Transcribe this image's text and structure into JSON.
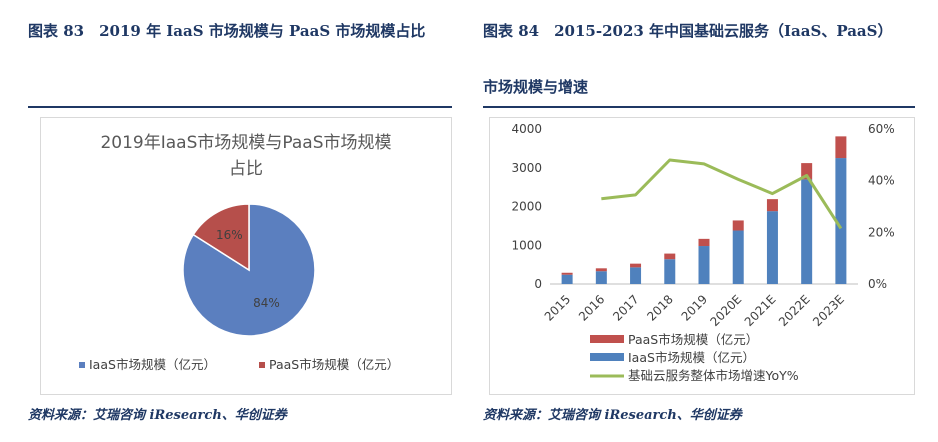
{
  "left": {
    "figure_title": "图表 83　2019 年 IaaS 市场规模与 PaaS 市场规模占比",
    "source": "资料来源：艾瑞咨询 iResearch、华创证券"
  },
  "right": {
    "figure_title_line1": "图表 84　2015-2023 年中国基础云服务（IaaS、PaaS）",
    "figure_title_line2": "市场规模与增速",
    "source": "资料来源：艾瑞咨询 iResearch、华创证券"
  },
  "chart_data": [
    {
      "type": "pie",
      "title_line1": "2019年IaaS市场规模与PaaS市场规模",
      "title_line2": "占比",
      "slices": [
        {
          "name": "IaaS市场规模（亿元）",
          "value": 84,
          "label": "84%",
          "color": "#5b7fbf"
        },
        {
          "name": "PaaS市场规模（亿元）",
          "value": 16,
          "label": "16%",
          "color": "#b64f4b"
        }
      ],
      "legend_position": "bottom"
    },
    {
      "type": "bar",
      "stacked": true,
      "categories": [
        "2015",
        "2016",
        "2017",
        "2018",
        "2019",
        "2020E",
        "2021E",
        "2022E",
        "2023E"
      ],
      "series": [
        {
          "name": "PaaS市场规模（亿元）",
          "axis": "left",
          "color": "#c0504d",
          "values": [
            50,
            75,
            95,
            145,
            185,
            260,
            310,
            420,
            560
          ]
        },
        {
          "name": "IaaS市场规模（亿元）",
          "axis": "left",
          "color": "#4f81bd",
          "values": [
            240,
            330,
            430,
            640,
            980,
            1380,
            1880,
            2700,
            3250
          ]
        },
        {
          "name": "基础云服务整体市场增速YoY%",
          "axis": "right",
          "type": "line",
          "color": "#9bbb59",
          "values": [
            null,
            0.33,
            0.345,
            0.48,
            0.465,
            0.405,
            0.35,
            0.42,
            0.215
          ]
        }
      ],
      "y_left": {
        "ticks": [
          "0",
          "1000",
          "2000",
          "3000",
          "4000"
        ],
        "min": 0,
        "max": 4000
      },
      "y_right": {
        "ticks": [
          "0%",
          "20%",
          "40%",
          "60%"
        ],
        "min": 0,
        "max": 0.6
      },
      "grid": false,
      "legend_position": "bottom"
    }
  ]
}
